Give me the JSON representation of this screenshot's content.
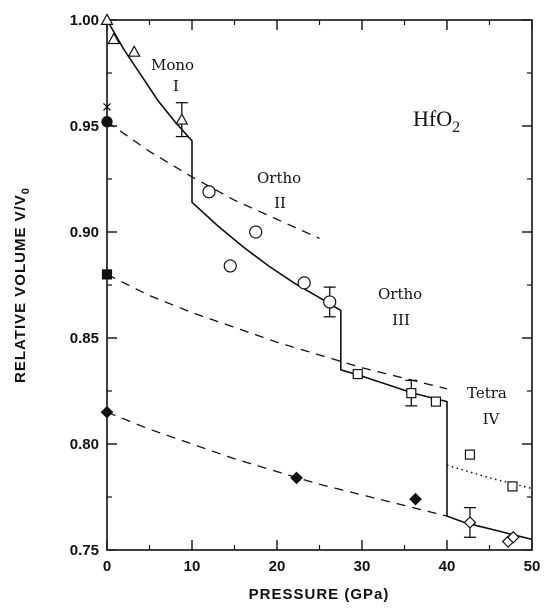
{
  "chart_data": {
    "type": "scatter",
    "title": "HfO2",
    "title_main": "HfO",
    "title_sub": "2",
    "xlabel": "PRESSURE (GPa)",
    "ylabel": "RELATIVE VOLUME V/V",
    "ylabel_sub": "0",
    "xlim": [
      0,
      50
    ],
    "ylim": [
      0.75,
      1.0
    ],
    "xticks": [
      "0",
      "10",
      "20",
      "30",
      "40",
      "50"
    ],
    "yticks": [
      "0.75",
      "0.80",
      "0.85",
      "0.90",
      "0.95",
      "1.00"
    ],
    "grid": false,
    "phase_labels": [
      {
        "name": "Mono",
        "numeral": "I"
      },
      {
        "name": "Ortho",
        "numeral": "II"
      },
      {
        "name": "Ortho",
        "numeral": "III"
      },
      {
        "name": "Tetra",
        "numeral": "IV"
      }
    ],
    "series": [
      {
        "marker": "triangle-open",
        "points": [
          [
            0.0,
            1.0
          ],
          [
            0.8,
            0.991
          ],
          [
            3.2,
            0.985
          ],
          [
            8.8,
            0.953
          ]
        ]
      },
      {
        "marker": "circle-open",
        "points": [
          [
            12.0,
            0.919
          ],
          [
            14.5,
            0.884
          ],
          [
            17.5,
            0.9
          ],
          [
            23.2,
            0.876
          ],
          [
            26.2,
            0.867
          ]
        ]
      },
      {
        "marker": "square-open",
        "points": [
          [
            29.5,
            0.833
          ],
          [
            35.8,
            0.824
          ],
          [
            38.7,
            0.82
          ],
          [
            42.7,
            0.795
          ],
          [
            47.7,
            0.78
          ]
        ]
      },
      {
        "marker": "diamond-open",
        "points": [
          [
            42.7,
            0.763
          ],
          [
            47.2,
            0.754
          ],
          [
            47.8,
            0.756
          ]
        ]
      },
      {
        "marker": "circle-filled",
        "points": [
          [
            0.0,
            0.952
          ]
        ]
      },
      {
        "marker": "square-filled",
        "points": [
          [
            0.0,
            0.88
          ]
        ]
      },
      {
        "marker": "diamond-filled",
        "points": [
          [
            0.0,
            0.815
          ],
          [
            22.3,
            0.784
          ],
          [
            36.3,
            0.774
          ]
        ]
      },
      {
        "marker": "cross",
        "points": [
          [
            0.0,
            0.959
          ]
        ]
      }
    ],
    "error_bars": [
      {
        "x": 8.8,
        "y": 0.953,
        "low": 0.945,
        "high": 0.961
      },
      {
        "x": 26.2,
        "y": 0.867,
        "low": 0.86,
        "high": 0.874
      },
      {
        "x": 35.8,
        "y": 0.824,
        "low": 0.818,
        "high": 0.83
      },
      {
        "x": 42.7,
        "y": 0.763,
        "low": 0.756,
        "high": 0.77
      }
    ],
    "solid_curve": [
      [
        0.0,
        1.0
      ],
      [
        2.0,
        0.986
      ],
      [
        4.0,
        0.974
      ],
      [
        6.0,
        0.962
      ],
      [
        8.0,
        0.952
      ],
      [
        10.0,
        0.943
      ],
      [
        10.0,
        0.914
      ],
      [
        13.0,
        0.903
      ],
      [
        16.0,
        0.893
      ],
      [
        19.0,
        0.884
      ],
      [
        22.0,
        0.876
      ],
      [
        25.0,
        0.869
      ],
      [
        27.5,
        0.863
      ],
      [
        27.5,
        0.835
      ],
      [
        30.0,
        0.832
      ],
      [
        33.0,
        0.828
      ],
      [
        36.0,
        0.824
      ],
      [
        38.0,
        0.822
      ],
      [
        40.0,
        0.82
      ],
      [
        40.0,
        0.766
      ],
      [
        42.0,
        0.763
      ],
      [
        44.0,
        0.761
      ],
      [
        46.0,
        0.759
      ],
      [
        48.0,
        0.757
      ],
      [
        50.0,
        0.755
      ]
    ],
    "dashed_curves": [
      [
        [
          0.0,
          0.952
        ],
        [
          5.0,
          0.938
        ],
        [
          10.0,
          0.926
        ],
        [
          15.0,
          0.915
        ],
        [
          20.0,
          0.906
        ],
        [
          25.0,
          0.897
        ]
      ],
      [
        [
          0.0,
          0.88
        ],
        [
          5.0,
          0.87
        ],
        [
          10.0,
          0.862
        ],
        [
          15.0,
          0.855
        ],
        [
          20.0,
          0.848
        ],
        [
          25.0,
          0.842
        ],
        [
          30.0,
          0.836
        ],
        [
          35.0,
          0.831
        ],
        [
          40.0,
          0.826
        ]
      ],
      [
        [
          0.0,
          0.815
        ],
        [
          5.0,
          0.807
        ],
        [
          10.0,
          0.8
        ],
        [
          15.0,
          0.793
        ],
        [
          20.0,
          0.787
        ],
        [
          25.0,
          0.781
        ],
        [
          30.0,
          0.776
        ],
        [
          35.0,
          0.771
        ],
        [
          40.0,
          0.766
        ]
      ]
    ],
    "dotted_curve": [
      [
        40.0,
        0.79
      ],
      [
        45.0,
        0.784
      ],
      [
        50.0,
        0.779
      ]
    ]
  }
}
